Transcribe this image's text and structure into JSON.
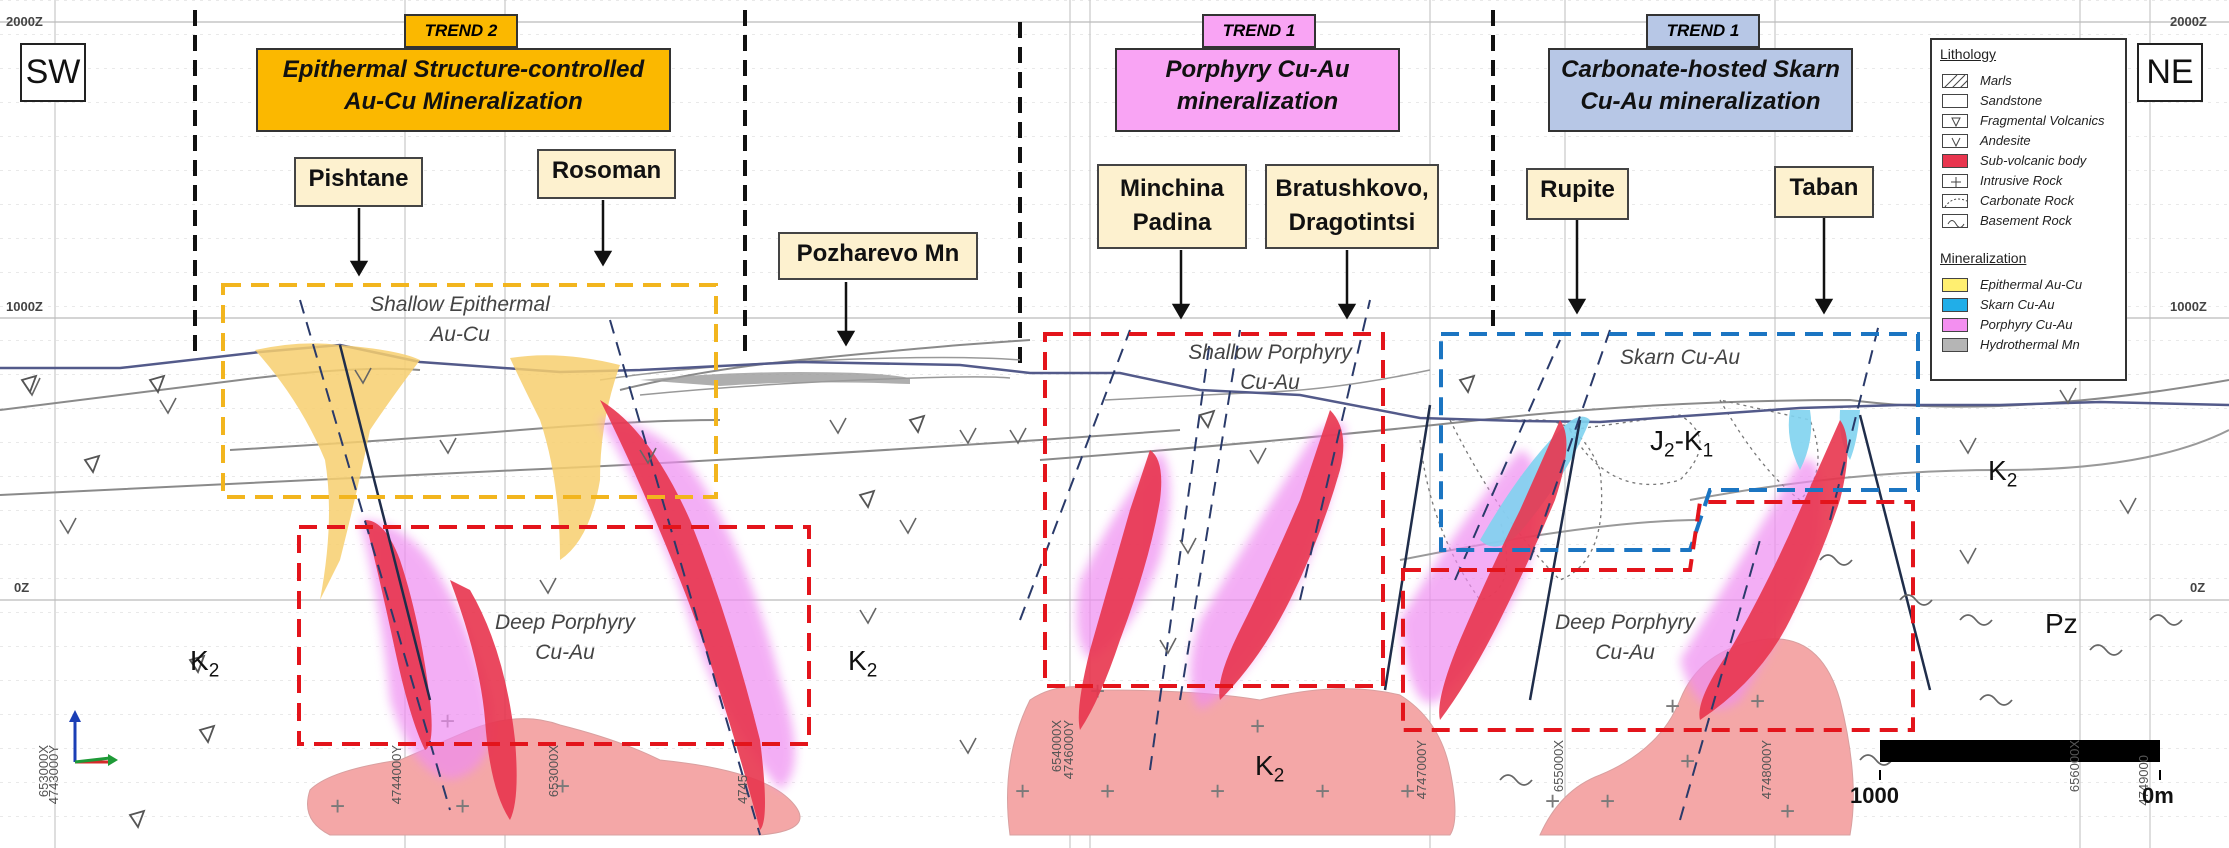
{
  "corners": {
    "left": "SW",
    "right": "NE"
  },
  "elevations": [
    "2000Z",
    "1000Z",
    "0Z"
  ],
  "trends": [
    {
      "tag": "TREND 2",
      "title_line1": "Epithermal Structure-controlled",
      "title_line2": "Au-Cu Mineralization",
      "color": "#fbb800"
    },
    {
      "tag": "TREND 1",
      "title_line1": "Porphyry Cu-Au",
      "title_line2": "mineralization",
      "color": "#f9a4f4"
    },
    {
      "tag": "TREND 1",
      "title_line1": "Carbonate-hosted Skarn",
      "title_line2": "Cu-Au mineralization",
      "color": "#b7c7e6"
    }
  ],
  "locations": {
    "pishtane": "Pishtane",
    "rosoman": "Rosoman",
    "pozharevo": "Pozharevo Mn",
    "minchina_1": "Minchina",
    "minchina_2": "Padina",
    "bratushkovo_1": "Bratushkovo,",
    "bratushkovo_2": "Dragotintsi",
    "rupite": "Rupite",
    "taban": "Taban"
  },
  "zones": {
    "shallow_epi_1": "Shallow Epithermal",
    "shallow_epi_2": "Au-Cu",
    "deep_porph_1": "Deep Porphyry",
    "deep_porph_2": "Cu-Au",
    "shallow_porph_1": "Shallow Porphyry",
    "shallow_porph_2": "Cu-Au",
    "skarn": "Skarn Cu-Au",
    "deep_porph_r_1": "Deep Porphyry",
    "deep_porph_r_2": "Cu-Au"
  },
  "units": {
    "k": "K",
    "k_sub": "2",
    "j": "J",
    "j_sub": "2",
    "k1": "-K",
    "k1_sub": "1",
    "pz": "Pz"
  },
  "coords": [
    "653000X",
    "4743000Y",
    "4744000Y",
    "653000X",
    "4745",
    "654000X",
    "4746000Y",
    "4747000Y",
    "655000X",
    "4748000Y",
    "656000X",
    "4749000"
  ],
  "legend": {
    "lithology_title": "Lithology",
    "lithology": [
      "Marls",
      "Sandstone",
      "Fragmental Volcanics",
      "Andesite",
      "Sub-volcanic body",
      "Intrusive Rock",
      "Carbonate Rock",
      "Basement Rock"
    ],
    "mineralization_title": "Mineralization",
    "mineralization": [
      {
        "label": "Epithermal Au-Cu",
        "color": "#ffef70"
      },
      {
        "label": "Skarn Cu-Au",
        "color": "#21aee8"
      },
      {
        "label": "Porphyry Cu-Au",
        "color": "#f38ff0"
      },
      {
        "label": "Hydrothermal Mn",
        "color": "#b5b5b5"
      }
    ]
  },
  "scale": {
    "left": "1000",
    "right": "0m"
  },
  "colors": {
    "epithermal": "#f7cf6e",
    "porphyry": "#ee8cf0",
    "subvolcanic": "#e8354e",
    "intrusive": "#f4a9a9",
    "skarn": "#7fd2ef",
    "yellow_dash": "#f2b51e",
    "red_dash": "#e3141b",
    "blue_dash": "#1b75c2"
  }
}
